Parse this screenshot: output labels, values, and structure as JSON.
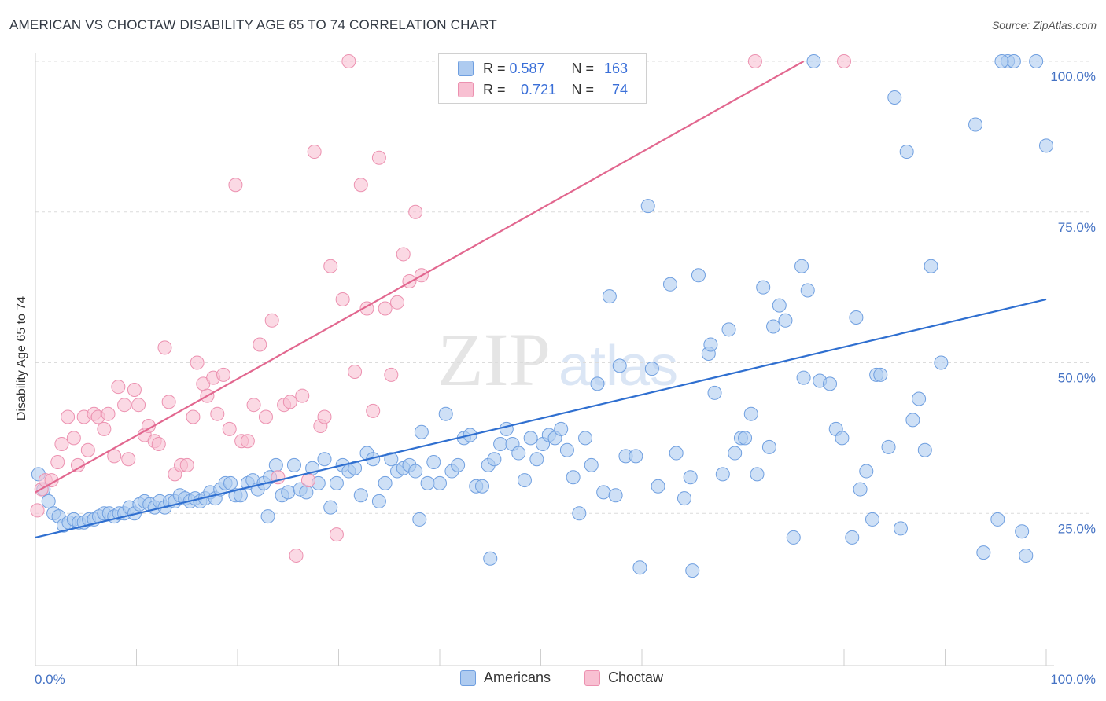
{
  "header": {
    "title": "AMERICAN VS CHOCTAW DISABILITY AGE 65 TO 74 CORRELATION CHART",
    "source": "Source: ZipAtlas.com"
  },
  "watermark": {
    "zip": "ZIP",
    "atlas": "atlas"
  },
  "legend": {
    "rows": [
      {
        "r_label": "R =",
        "r_value": "0.587",
        "n_label": "N =",
        "n_value": "163"
      },
      {
        "r_label": "R =",
        "r_value": "0.721",
        "n_label": "N =",
        "n_value": "74"
      }
    ]
  },
  "bottom_legend": {
    "americans": "Americans",
    "choctaw": "Choctaw"
  },
  "colors": {
    "americans_fill": "#aecbf0",
    "americans_stroke": "#6f9fe0",
    "americans_line": "#2f6fd0",
    "choctaw_fill": "#f8c0d2",
    "choctaw_stroke": "#ec91b0",
    "choctaw_line": "#e2678f",
    "axis_label": "#4472c4"
  },
  "chart_data": {
    "type": "scatter",
    "title": "AMERICAN VS CHOCTAW DISABILITY AGE 65 TO 74 CORRELATION CHART",
    "xlabel": "",
    "ylabel": "Disability Age 65 to 74",
    "xlim": [
      0,
      100
    ],
    "ylim": [
      0,
      100
    ],
    "x_tick_labels": [
      "0.0%",
      "100.0%"
    ],
    "y_tick_labels": [
      "25.0%",
      "50.0%",
      "75.0%",
      "100.0%"
    ],
    "y_tick_values": [
      25,
      50,
      75,
      100
    ],
    "grid": "horizontal dashed",
    "legend_position": "top-center",
    "series": [
      {
        "name": "Americans",
        "r": 0.587,
        "n": 163,
        "trend": [
          [
            0,
            21.0
          ],
          [
            100,
            60.5
          ]
        ],
        "points": [
          [
            0.3,
            31.5
          ],
          [
            0.8,
            29.0
          ],
          [
            1.3,
            27.0
          ],
          [
            1.8,
            25.0
          ],
          [
            2.3,
            24.5
          ],
          [
            2.8,
            23.0
          ],
          [
            3.3,
            23.5
          ],
          [
            3.8,
            24.0
          ],
          [
            4.3,
            23.5
          ],
          [
            4.8,
            23.5
          ],
          [
            5.3,
            24.0
          ],
          [
            5.8,
            24.0
          ],
          [
            6.3,
            24.5
          ],
          [
            6.8,
            25.0
          ],
          [
            7.3,
            25.0
          ],
          [
            7.8,
            24.5
          ],
          [
            8.3,
            25.0
          ],
          [
            8.8,
            25.0
          ],
          [
            9.3,
            26.0
          ],
          [
            9.8,
            25.0
          ],
          [
            10.3,
            26.5
          ],
          [
            10.8,
            27.0
          ],
          [
            11.3,
            26.5
          ],
          [
            11.8,
            26.0
          ],
          [
            12.3,
            27.0
          ],
          [
            12.8,
            26.0
          ],
          [
            13.3,
            27.0
          ],
          [
            13.8,
            27.0
          ],
          [
            14.3,
            28.0
          ],
          [
            14.8,
            27.5
          ],
          [
            15.3,
            27.0
          ],
          [
            15.8,
            27.5
          ],
          [
            16.3,
            27.0
          ],
          [
            16.8,
            27.5
          ],
          [
            17.3,
            28.5
          ],
          [
            17.8,
            27.5
          ],
          [
            18.3,
            29.0
          ],
          [
            18.8,
            30.0
          ],
          [
            19.3,
            30.0
          ],
          [
            19.8,
            28.0
          ],
          [
            20.3,
            28.0
          ],
          [
            21.0,
            30.0
          ],
          [
            21.5,
            30.5
          ],
          [
            22.0,
            29.0
          ],
          [
            22.6,
            30.0
          ],
          [
            23.2,
            31.0
          ],
          [
            23.8,
            33.0
          ],
          [
            24.4,
            28.0
          ],
          [
            25.0,
            28.5
          ],
          [
            25.6,
            33.0
          ],
          [
            26.2,
            29.0
          ],
          [
            26.8,
            28.5
          ],
          [
            27.4,
            32.5
          ],
          [
            28.0,
            30.0
          ],
          [
            28.6,
            34.0
          ],
          [
            29.2,
            26.0
          ],
          [
            29.8,
            30.0
          ],
          [
            30.4,
            33.0
          ],
          [
            31.0,
            32.0
          ],
          [
            31.6,
            32.5
          ],
          [
            32.2,
            28.0
          ],
          [
            32.8,
            35.0
          ],
          [
            33.4,
            34.0
          ],
          [
            34.0,
            27.0
          ],
          [
            34.6,
            30.0
          ],
          [
            35.2,
            34.0
          ],
          [
            35.8,
            32.0
          ],
          [
            36.4,
            32.5
          ],
          [
            37.0,
            33.0
          ],
          [
            37.6,
            32.0
          ],
          [
            38.2,
            38.5
          ],
          [
            38.8,
            30.0
          ],
          [
            39.4,
            33.5
          ],
          [
            40.0,
            30.0
          ],
          [
            40.6,
            41.5
          ],
          [
            41.2,
            32.0
          ],
          [
            41.8,
            33.0
          ],
          [
            42.4,
            37.5
          ],
          [
            43.0,
            38.0
          ],
          [
            43.6,
            29.5
          ],
          [
            44.2,
            29.5
          ],
          [
            44.8,
            33.0
          ],
          [
            45.4,
            34.0
          ],
          [
            46.0,
            36.5
          ],
          [
            46.6,
            39.0
          ],
          [
            47.2,
            36.5
          ],
          [
            47.8,
            35.0
          ],
          [
            48.4,
            30.5
          ],
          [
            49.0,
            37.5
          ],
          [
            49.6,
            34.0
          ],
          [
            50.2,
            36.5
          ],
          [
            50.8,
            38.0
          ],
          [
            51.4,
            37.5
          ],
          [
            52.0,
            39.0
          ],
          [
            52.6,
            35.5
          ],
          [
            53.2,
            31.0
          ],
          [
            53.8,
            25.0
          ],
          [
            54.4,
            37.5
          ],
          [
            55.0,
            33.0
          ],
          [
            55.6,
            46.5
          ],
          [
            56.2,
            28.5
          ],
          [
            56.8,
            61.0
          ],
          [
            57.4,
            28.0
          ],
          [
            57.8,
            49.5
          ],
          [
            58.4,
            34.5
          ],
          [
            59.4,
            34.5
          ],
          [
            60.6,
            76.0
          ],
          [
            61.0,
            49.0
          ],
          [
            61.6,
            29.5
          ],
          [
            62.8,
            63.0
          ],
          [
            63.4,
            35.0
          ],
          [
            64.2,
            27.5
          ],
          [
            64.8,
            31.0
          ],
          [
            65.6,
            64.5
          ],
          [
            66.6,
            51.5
          ],
          [
            66.8,
            53.0
          ],
          [
            67.2,
            45.0
          ],
          [
            68.0,
            31.5
          ],
          [
            68.6,
            55.5
          ],
          [
            69.2,
            35.0
          ],
          [
            69.8,
            37.5
          ],
          [
            70.2,
            37.5
          ],
          [
            70.8,
            41.5
          ],
          [
            71.4,
            31.5
          ],
          [
            72.0,
            62.5
          ],
          [
            72.6,
            36.0
          ],
          [
            73.0,
            56.0
          ],
          [
            73.6,
            59.5
          ],
          [
            74.2,
            57.0
          ],
          [
            75.0,
            21.0
          ],
          [
            75.8,
            66.0
          ],
          [
            76.0,
            47.5
          ],
          [
            76.4,
            62.0
          ],
          [
            77.0,
            100.0
          ],
          [
            77.6,
            47.0
          ],
          [
            78.6,
            46.5
          ],
          [
            79.2,
            39.0
          ],
          [
            79.8,
            37.5
          ],
          [
            80.8,
            21.0
          ],
          [
            81.2,
            57.5
          ],
          [
            81.6,
            29.0
          ],
          [
            82.2,
            32.0
          ],
          [
            82.8,
            24.0
          ],
          [
            83.2,
            48.0
          ],
          [
            83.6,
            48.0
          ],
          [
            84.4,
            36.0
          ],
          [
            85.0,
            94.0
          ],
          [
            85.6,
            22.5
          ],
          [
            86.2,
            85.0
          ],
          [
            86.8,
            40.5
          ],
          [
            87.4,
            44.0
          ],
          [
            88.0,
            35.5
          ],
          [
            88.6,
            66.0
          ],
          [
            89.6,
            50.0
          ],
          [
            93.0,
            89.5
          ],
          [
            93.8,
            18.5
          ],
          [
            95.2,
            24.0
          ],
          [
            96.2,
            100.0
          ],
          [
            96.8,
            100.0
          ],
          [
            97.6,
            22.0
          ],
          [
            100.0,
            86.0
          ],
          [
            95.6,
            100.0
          ],
          [
            99.0,
            100.0
          ],
          [
            45.0,
            17.5
          ],
          [
            59.8,
            16.0
          ],
          [
            65.0,
            15.5
          ],
          [
            98.0,
            18.0
          ],
          [
            23.0,
            24.5
          ],
          [
            38.0,
            24.0
          ]
        ]
      },
      {
        "name": "Choctaw",
        "r": 0.721,
        "n": 74,
        "trend": [
          [
            0,
            28.5
          ],
          [
            76,
            100.0
          ]
        ],
        "points": [
          [
            0.2,
            25.5
          ],
          [
            0.6,
            29.0
          ],
          [
            1.0,
            30.5
          ],
          [
            1.6,
            30.5
          ],
          [
            2.2,
            33.5
          ],
          [
            2.6,
            36.5
          ],
          [
            3.2,
            41.0
          ],
          [
            3.8,
            37.5
          ],
          [
            4.2,
            33.0
          ],
          [
            4.8,
            41.0
          ],
          [
            5.2,
            35.5
          ],
          [
            5.8,
            41.5
          ],
          [
            6.2,
            41.0
          ],
          [
            6.8,
            39.0
          ],
          [
            7.2,
            41.5
          ],
          [
            7.8,
            34.5
          ],
          [
            8.2,
            46.0
          ],
          [
            8.8,
            43.0
          ],
          [
            9.2,
            34.0
          ],
          [
            9.8,
            45.5
          ],
          [
            10.2,
            43.0
          ],
          [
            10.8,
            38.0
          ],
          [
            11.2,
            39.5
          ],
          [
            11.8,
            37.0
          ],
          [
            12.2,
            36.5
          ],
          [
            12.8,
            52.5
          ],
          [
            13.2,
            43.5
          ],
          [
            13.8,
            31.5
          ],
          [
            14.4,
            33.0
          ],
          [
            15.0,
            33.0
          ],
          [
            15.6,
            41.0
          ],
          [
            16.0,
            50.0
          ],
          [
            16.6,
            46.5
          ],
          [
            17.0,
            44.5
          ],
          [
            17.6,
            47.5
          ],
          [
            18.0,
            41.5
          ],
          [
            18.6,
            48.0
          ],
          [
            19.2,
            39.0
          ],
          [
            19.8,
            79.5
          ],
          [
            20.4,
            37.0
          ],
          [
            21.0,
            37.0
          ],
          [
            21.6,
            43.0
          ],
          [
            22.2,
            53.0
          ],
          [
            22.8,
            41.0
          ],
          [
            23.4,
            57.0
          ],
          [
            24.0,
            31.0
          ],
          [
            24.6,
            43.0
          ],
          [
            25.2,
            43.5
          ],
          [
            25.8,
            18.0
          ],
          [
            26.4,
            44.5
          ],
          [
            27.0,
            30.5
          ],
          [
            27.6,
            85.0
          ],
          [
            28.2,
            39.5
          ],
          [
            28.6,
            41.0
          ],
          [
            29.2,
            66.0
          ],
          [
            29.8,
            21.5
          ],
          [
            30.4,
            60.5
          ],
          [
            31.0,
            100.0
          ],
          [
            31.6,
            48.5
          ],
          [
            32.2,
            79.5
          ],
          [
            32.8,
            59.0
          ],
          [
            33.4,
            42.0
          ],
          [
            34.0,
            84.0
          ],
          [
            34.6,
            59.0
          ],
          [
            35.2,
            48.0
          ],
          [
            35.8,
            60.0
          ],
          [
            36.4,
            68.0
          ],
          [
            37.0,
            63.5
          ],
          [
            37.6,
            75.0
          ],
          [
            38.2,
            64.5
          ],
          [
            71.2,
            100.0
          ],
          [
            80.0,
            100.0
          ]
        ]
      }
    ]
  }
}
